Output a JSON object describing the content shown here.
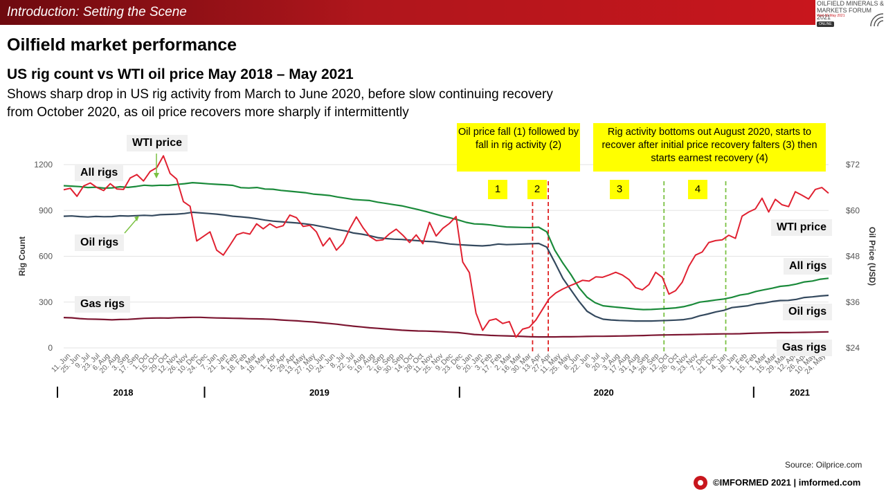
{
  "header": {
    "section_title": "Introduction: Setting the Scene",
    "logo": {
      "line1": "OILFIELD MINERALS &",
      "line2": "MARKETS FORUM 2021",
      "line3": "Wed 26 May 2021",
      "line4": "ONLINE"
    }
  },
  "page_title": "Oilfield market performance",
  "subtitle": "US rig count vs WTI oil price May 2018 – May 2021",
  "description": "Shows sharp drop in US rig activity from March to June 2020, before slow continuing recovery from October 2020, as oil price recovers more sharply if intermittently",
  "callouts": {
    "price_fall": "Oil price fall (1) followed by fall in rig activity (2)",
    "bottom_out": "Rig activity bottoms out August 2020, starts to recover after initial price recovery falters (3) then starts earnest recovery (4)"
  },
  "markers": [
    "1",
    "2",
    "3",
    "4"
  ],
  "labels": {
    "wti_top": "WTI price",
    "all_rigs_left": "All rigs",
    "oil_rigs_left": "Oil rigs",
    "gas_rigs_left": "Gas rigs",
    "wti_right": "WTI price",
    "all_rigs_right": "All rigs",
    "oil_rigs_right": "Oil rigs",
    "gas_rigs_right": "Gas rigs"
  },
  "source": "Source: Oilprice.com",
  "footer": "©IMFORMED 2021  | imformed.com",
  "chart_data": {
    "type": "line",
    "ylabel": "Rig Count",
    "y2label": "Oil Price (USD)",
    "ylim": [
      0,
      1200
    ],
    "y2lim": [
      24,
      72
    ],
    "yticks": [
      "0",
      "300",
      "600",
      "900",
      "1200"
    ],
    "y2ticks": [
      "$24",
      "$36",
      "$48",
      "$60",
      "$72"
    ],
    "x_tick_labels": [
      "11. Jun",
      "25. Jun",
      "9. Jul",
      "23. Jul",
      "6. Aug",
      "20. Aug",
      "3. Sep",
      "17. Sep",
      "1. Oct",
      "15. Oct",
      "29. Oct",
      "12. Nov",
      "26. Nov",
      "10. Dec",
      "24. Dec",
      "7. Jan",
      "21. Jan",
      "4. Feb",
      "18. Feb",
      "4. Mar",
      "18. Mar",
      "1. Apr",
      "15. Apr",
      "29. Apr",
      "13. May",
      "27. May",
      "10. Jun",
      "24. Jun",
      "8. Jul",
      "22. Jul",
      "5. Aug",
      "19. Aug",
      "2. Sep",
      "16. Sep",
      "30. Sep",
      "14. Oct",
      "28. Oct",
      "11. Nov",
      "25. Nov",
      "9. Dec",
      "23. Dec",
      "6. Jan",
      "20. Jan",
      "3. Feb",
      "17. Feb",
      "2. Mar",
      "16. Mar",
      "30. Mar",
      "13. Apr",
      "27. Apr",
      "11. May",
      "25. May",
      "8. Jun",
      "22. Jun",
      "6. Jul",
      "20. Jul",
      "3. Aug",
      "17. Aug",
      "31. Aug",
      "14. Sep",
      "28. Sep",
      "12. Oct",
      "26. Oct",
      "9. Nov",
      "23. Nov",
      "7. Dec",
      "21. Dec",
      "4. Jan",
      "18. Jan",
      "1. Feb",
      "15. Feb",
      "1. Mar",
      "15. Mar",
      "29. Mar",
      "12. Apr",
      "26. Apr",
      "10. May",
      "24. May"
    ],
    "years": [
      {
        "label": "2018",
        "at": 6
      },
      {
        "label": "2019",
        "at": 26
      },
      {
        "label": "2020",
        "at": 55
      },
      {
        "label": "2021",
        "at": 75
      }
    ],
    "year_dividers": [
      -0.5,
      14.5,
      40.5,
      70.5
    ],
    "event_lines": [
      {
        "x": 47.6,
        "color": "#e02020"
      },
      {
        "x": 49.2,
        "color": "#e02020"
      },
      {
        "x": 61.0,
        "color": "#7ac142"
      },
      {
        "x": 67.3,
        "color": "#7ac142"
      }
    ],
    "colors": {
      "all_rigs": "#1a8a3a",
      "oil_rigs": "#34495e",
      "gas_rigs": "#7b1530",
      "wti": "#e02030"
    },
    "series": [
      {
        "name": "All rigs",
        "axis": "left",
        "values": [
          1062,
          1059,
          1056,
          1050,
          1052,
          1046,
          1048,
          1055,
          1051,
          1057,
          1065,
          1062,
          1065,
          1064,
          1070,
          1075,
          1082,
          1078,
          1074,
          1071,
          1068,
          1064,
          1049,
          1047,
          1050,
          1040,
          1039,
          1031,
          1026,
          1021,
          1016,
          1007,
          1003,
          998,
          988,
          980,
          972,
          968,
          965,
          954,
          946,
          938,
          930,
          918,
          906,
          893,
          878,
          864,
          852,
          838,
          822,
          812,
          810,
          805,
          798,
          792,
          790,
          789,
          788,
          790,
          760,
          640,
          555,
          480,
          395,
          332,
          296,
          276,
          270,
          265,
          260,
          254,
          251,
          252,
          255,
          258,
          262,
          270,
          283,
          300,
          306,
          314,
          320,
          331,
          346,
          354,
          370,
          381,
          391,
          403,
          408,
          418,
          432,
          438,
          450,
          456
        ]
      },
      {
        "name": "Oil rigs",
        "axis": "left",
        "values": [
          862,
          864,
          860,
          857,
          861,
          859,
          860,
          865,
          863,
          866,
          868,
          866,
          872,
          874,
          876,
          880,
          888,
          884,
          880,
          876,
          870,
          862,
          858,
          853,
          846,
          837,
          830,
          826,
          822,
          818,
          812,
          805,
          795,
          785,
          775,
          766,
          752,
          745,
          735,
          722,
          716,
          712,
          710,
          706,
          702,
          698,
          695,
          688,
          680,
          676,
          673,
          670,
          668,
          672,
          680,
          676,
          678,
          680,
          682,
          684,
          660,
          560,
          455,
          380,
          305,
          240,
          208,
          188,
          183,
          180,
          178,
          176,
          176,
          176,
          178,
          180,
          182,
          185,
          194,
          210,
          222,
          236,
          246,
          264,
          270,
          276,
          288,
          294,
          304,
          310,
          311,
          318,
          330,
          334,
          340,
          344
        ]
      },
      {
        "name": "Gas rigs",
        "axis": "left",
        "values": [
          199,
          197,
          192,
          189,
          188,
          186,
          184,
          186,
          187,
          190,
          194,
          195,
          196,
          195,
          198,
          199,
          200,
          200,
          198,
          196,
          195,
          194,
          193,
          191,
          190,
          189,
          187,
          183,
          180,
          177,
          173,
          170,
          165,
          160,
          155,
          148,
          142,
          137,
          132,
          128,
          124,
          120,
          116,
          113,
          111,
          110,
          108,
          106,
          103,
          100,
          94,
          88,
          85,
          82,
          80,
          79,
          77,
          75,
          73,
          72,
          72,
          72,
          73,
          73,
          74,
          75,
          76,
          76,
          77,
          78,
          79,
          80,
          81,
          83,
          84,
          85,
          86,
          87,
          88,
          89,
          90,
          91,
          92,
          92,
          93,
          95,
          97,
          98,
          99,
          100,
          100,
          101,
          102,
          103,
          104,
          105
        ]
      },
      {
        "name": "WTI price",
        "axis": "right",
        "values": [
          65.4,
          65.8,
          63.7,
          66.4,
          67.2,
          66.0,
          65.2,
          67.0,
          65.6,
          65.5,
          68.5,
          69.4,
          67.7,
          70.2,
          71.2,
          74.3,
          69.7,
          68.2,
          62.3,
          61.1,
          52.0,
          53.2,
          54.4,
          49.6,
          48.3,
          50.9,
          53.6,
          54.2,
          53.8,
          56.5,
          55.2,
          56.5,
          55.5,
          56.0,
          58.8,
          58.1,
          55.8,
          56.1,
          54.4,
          50.7,
          52.8,
          49.6,
          51.4,
          55.2,
          58.3,
          55.5,
          53.2,
          52.1,
          52.3,
          53.9,
          55.1,
          53.5,
          51.6,
          53.6,
          51.3,
          56.9,
          53.3,
          55.3,
          56.6,
          58.4,
          46.5,
          43.7,
          33.1,
          28.6,
          31.2,
          31.6,
          30.4,
          30.9,
          26.8,
          28.9,
          29.4,
          31.3,
          34.1,
          36.9,
          38.4,
          39.4,
          40.2,
          40.9,
          41.7,
          41.5,
          42.6,
          42.5,
          43.1,
          43.8,
          43.1,
          41.9,
          39.8,
          39.2,
          40.6,
          43.8,
          42.5,
          38.1,
          39.0,
          41.2,
          45.4,
          48.3,
          49.1,
          51.6,
          52.1,
          52.3,
          53.5,
          52.7,
          58.5,
          59.6,
          60.4,
          63.2,
          59.6,
          62.9,
          61.5,
          61.0,
          64.9,
          64.0,
          63.0,
          65.5,
          66.0,
          64.5
        ]
      }
    ]
  }
}
